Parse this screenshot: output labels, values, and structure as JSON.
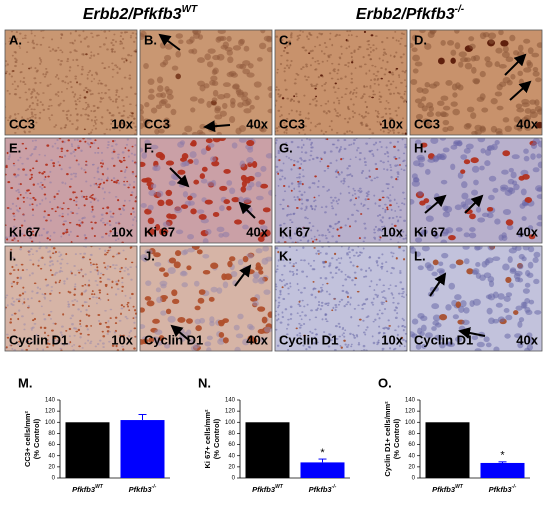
{
  "headers": [
    {
      "text": "Erbb2/Pfkfb3",
      "sup": "WT"
    },
    {
      "text": "Erbb2/Pfkfb3",
      "sup": "-/-"
    }
  ],
  "panels": [
    {
      "label": "A.",
      "stain": "CC3",
      "mag": "10x"
    },
    {
      "label": "B.",
      "stain": "CC3",
      "mag": "40x"
    },
    {
      "label": "C.",
      "stain": "CC3",
      "mag": "10x"
    },
    {
      "label": "D.",
      "stain": "CC3",
      "mag": "40x"
    },
    {
      "label": "E.",
      "stain": "Ki 67",
      "mag": "10x"
    },
    {
      "label": "F.",
      "stain": "Ki 67",
      "mag": "40x"
    },
    {
      "label": "G.",
      "stain": "Ki 67",
      "mag": "10x"
    },
    {
      "label": "H.",
      "stain": "Ki 67",
      "mag": "40x"
    },
    {
      "label": "I.",
      "stain": "Cyclin D1",
      "mag": "10x"
    },
    {
      "label": "J.",
      "stain": "Cyclin D1",
      "mag": "40x"
    },
    {
      "label": "K.",
      "stain": "Cyclin D1",
      "mag": "10x"
    },
    {
      "label": "L.",
      "stain": "Cyclin D1",
      "mag": "40x"
    }
  ],
  "chart_data": [
    {
      "type": "bar",
      "panel": "M.",
      "ylabel": [
        "CC3+ cells/mm²",
        "(% Control)"
      ],
      "categories": [
        {
          "text": "Pfkfb3",
          "sup": "WT"
        },
        {
          "text": "Pfkfb3",
          "sup": "-/-"
        }
      ],
      "series": [
        {
          "values": [
            100,
            104
          ],
          "errors": [
            null,
            10
          ],
          "colors": [
            "#000000",
            "#0000ff"
          ]
        }
      ],
      "ylim": [
        0,
        140
      ],
      "yticks": [
        0,
        20,
        40,
        60,
        80,
        100,
        120,
        140
      ],
      "annotations": []
    },
    {
      "type": "bar",
      "panel": "N.",
      "ylabel": [
        "Ki 67+ cells/mm²",
        "(% Control)"
      ],
      "categories": [
        {
          "text": "Pfkfb3",
          "sup": "WT"
        },
        {
          "text": "Pfkfb3",
          "sup": "-/-"
        }
      ],
      "series": [
        {
          "values": [
            100,
            28
          ],
          "errors": [
            null,
            6
          ],
          "colors": [
            "#000000",
            "#0000ff"
          ]
        }
      ],
      "ylim": [
        0,
        140
      ],
      "yticks": [
        0,
        20,
        40,
        60,
        80,
        100,
        120,
        140
      ],
      "annotations": [
        {
          "text": "*",
          "index": 1
        }
      ]
    },
    {
      "type": "bar",
      "panel": "O.",
      "ylabel": [
        "Cyclin D1+ cells/mm²",
        "(% Control)"
      ],
      "categories": [
        {
          "text": "Pfkfb3",
          "sup": "WT"
        },
        {
          "text": "Pfkfb3",
          "sup": "-/-"
        }
      ],
      "series": [
        {
          "values": [
            100,
            27
          ],
          "errors": [
            null,
            2
          ],
          "colors": [
            "#000000",
            "#0000ff"
          ]
        }
      ],
      "ylim": [
        0,
        140
      ],
      "yticks": [
        0,
        20,
        40,
        60,
        80,
        100,
        120,
        140
      ],
      "annotations": [
        {
          "text": "*",
          "index": 1
        }
      ]
    }
  ]
}
